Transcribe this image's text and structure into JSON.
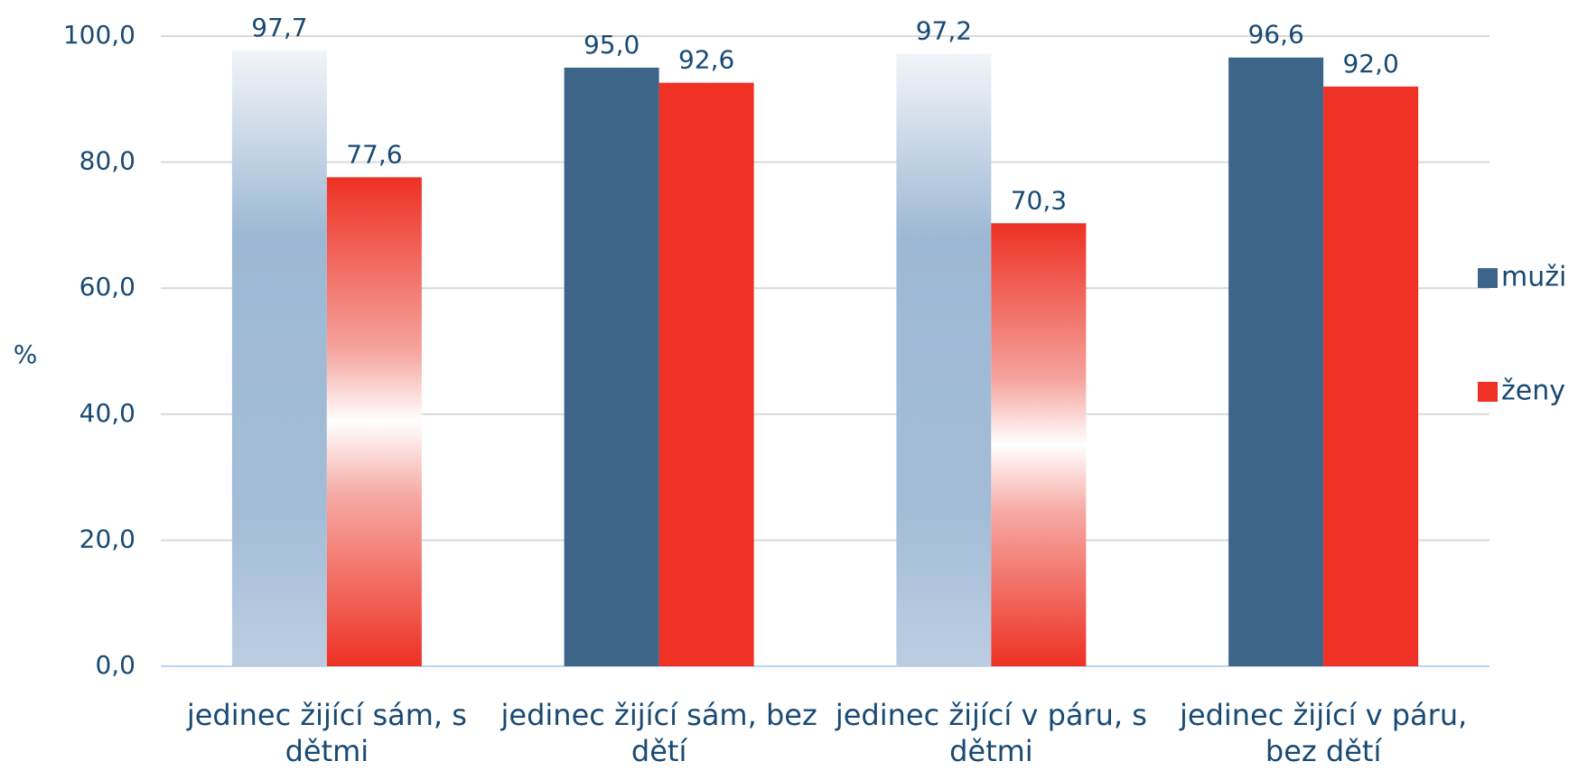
{
  "chart_data": {
    "type": "bar",
    "y_label": "%",
    "categories": [
      "jedinec žijící sám, s dětmi",
      "jedinec žijící sám, bez dětí",
      "jedinec žijící v páru, s dětmi",
      "jedinec žijící v páru, bez dětí"
    ],
    "series": [
      {
        "name": "muži",
        "color": "#3d6489",
        "values": [
          97.7,
          95.0,
          97.2,
          96.6
        ],
        "value_labels": [
          "97,7",
          "95,0",
          "97,2",
          "96,6"
        ],
        "gradient": [
          true,
          false,
          true,
          false
        ]
      },
      {
        "name": "ženy",
        "color": "#ee3124",
        "values": [
          77.6,
          92.6,
          70.3,
          92.0
        ],
        "value_labels": [
          "77,6",
          "92,6",
          "70,3",
          "92,0"
        ],
        "gradient": [
          true,
          false,
          true,
          false
        ]
      }
    ],
    "ylim": [
      0,
      100
    ],
    "yticks": [
      {
        "value": 0,
        "label": "0,0"
      },
      {
        "value": 20,
        "label": "20,0"
      },
      {
        "value": 40,
        "label": "40,0"
      },
      {
        "value": 60,
        "label": "60,0"
      },
      {
        "value": 80,
        "label": "80,0"
      },
      {
        "value": 100,
        "label": "100,0"
      }
    ],
    "grid": true,
    "legend": "right"
  }
}
